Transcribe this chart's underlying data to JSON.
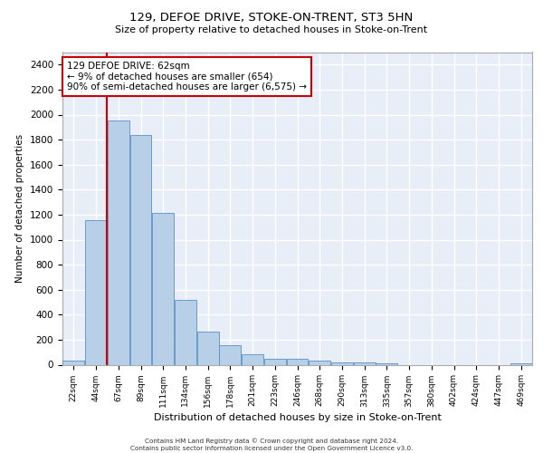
{
  "title1": "129, DEFOE DRIVE, STOKE-ON-TRENT, ST3 5HN",
  "title2": "Size of property relative to detached houses in Stoke-on-Trent",
  "xlabel": "Distribution of detached houses by size in Stoke-on-Trent",
  "ylabel": "Number of detached properties",
  "categories": [
    "22sqm",
    "44sqm",
    "67sqm",
    "89sqm",
    "111sqm",
    "134sqm",
    "156sqm",
    "178sqm",
    "201sqm",
    "223sqm",
    "246sqm",
    "268sqm",
    "290sqm",
    "313sqm",
    "335sqm",
    "357sqm",
    "380sqm",
    "402sqm",
    "424sqm",
    "447sqm",
    "469sqm"
  ],
  "values": [
    30,
    1155,
    1950,
    1840,
    1215,
    515,
    265,
    155,
    80,
    50,
    45,
    35,
    20,
    17,
    10,
    0,
    0,
    0,
    0,
    0,
    10
  ],
  "bar_color": "#b8cfe8",
  "bar_edge_color": "#5b8ec4",
  "background_color": "#e8eef8",
  "grid_color": "#ffffff",
  "ylim": [
    0,
    2500
  ],
  "yticks": [
    0,
    200,
    400,
    600,
    800,
    1000,
    1200,
    1400,
    1600,
    1800,
    2000,
    2200,
    2400
  ],
  "property_line_x": 1.5,
  "annotation_text": "129 DEFOE DRIVE: 62sqm\n← 9% of detached houses are smaller (654)\n90% of semi-detached houses are larger (6,575) →",
  "annotation_box_color": "#ffffff",
  "annotation_border_color": "#cc0000",
  "footer1": "Contains HM Land Registry data © Crown copyright and database right 2024.",
  "footer2": "Contains public sector information licensed under the Open Government Licence v3.0."
}
